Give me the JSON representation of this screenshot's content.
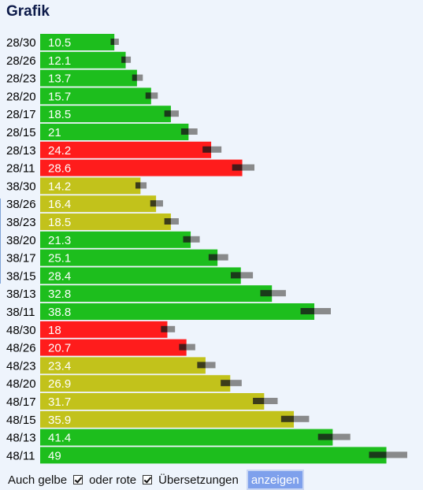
{
  "header": {
    "title": "Grafik"
  },
  "colors": {
    "green": "#1dbe1d",
    "red": "#ff1c1c",
    "yellow": "#c2c21b",
    "marker_dark": "#1a1a1a",
    "marker_gray": "#777777"
  },
  "chart_data": {
    "type": "bar",
    "orientation": "horizontal",
    "title": "Grafik",
    "categories": [
      "28/30",
      "28/26",
      "28/23",
      "28/20",
      "28/17",
      "28/15",
      "28/13",
      "28/11",
      "38/30",
      "38/26",
      "38/23",
      "38/20",
      "38/17",
      "38/15",
      "38/13",
      "38/11",
      "48/30",
      "48/26",
      "48/23",
      "48/20",
      "48/17",
      "48/15",
      "48/13",
      "48/11"
    ],
    "values": [
      10.5,
      12.1,
      13.7,
      15.7,
      18.5,
      21,
      24.2,
      28.6,
      14.2,
      16.4,
      18.5,
      21.3,
      25.1,
      28.4,
      32.8,
      38.8,
      18,
      20.7,
      23.4,
      26.9,
      31.7,
      35.9,
      41.4,
      49
    ],
    "value_labels": [
      "10.5",
      "12.1",
      "13.7",
      "15.7",
      "18.5",
      "21",
      "24.2",
      "28.6",
      "14.2",
      "16.4",
      "18.5",
      "21.3",
      "25.1",
      "28.4",
      "32.8",
      "38.8",
      "18",
      "20.7",
      "23.4",
      "26.9",
      "31.7",
      "35.9",
      "41.4",
      "49"
    ],
    "bar_colors": [
      "green",
      "green",
      "green",
      "green",
      "green",
      "green",
      "red",
      "red",
      "yellow",
      "yellow",
      "yellow",
      "green",
      "green",
      "green",
      "green",
      "green",
      "red",
      "red",
      "yellow",
      "yellow",
      "yellow",
      "yellow",
      "green",
      "green"
    ],
    "xlim": [
      0,
      55
    ],
    "grid": false,
    "legend": "none"
  },
  "footer": {
    "yellow_label": "Auch gelbe",
    "red_label": "oder rote",
    "translation_label": "Übersetzungen",
    "button_label": "anzeigen"
  }
}
